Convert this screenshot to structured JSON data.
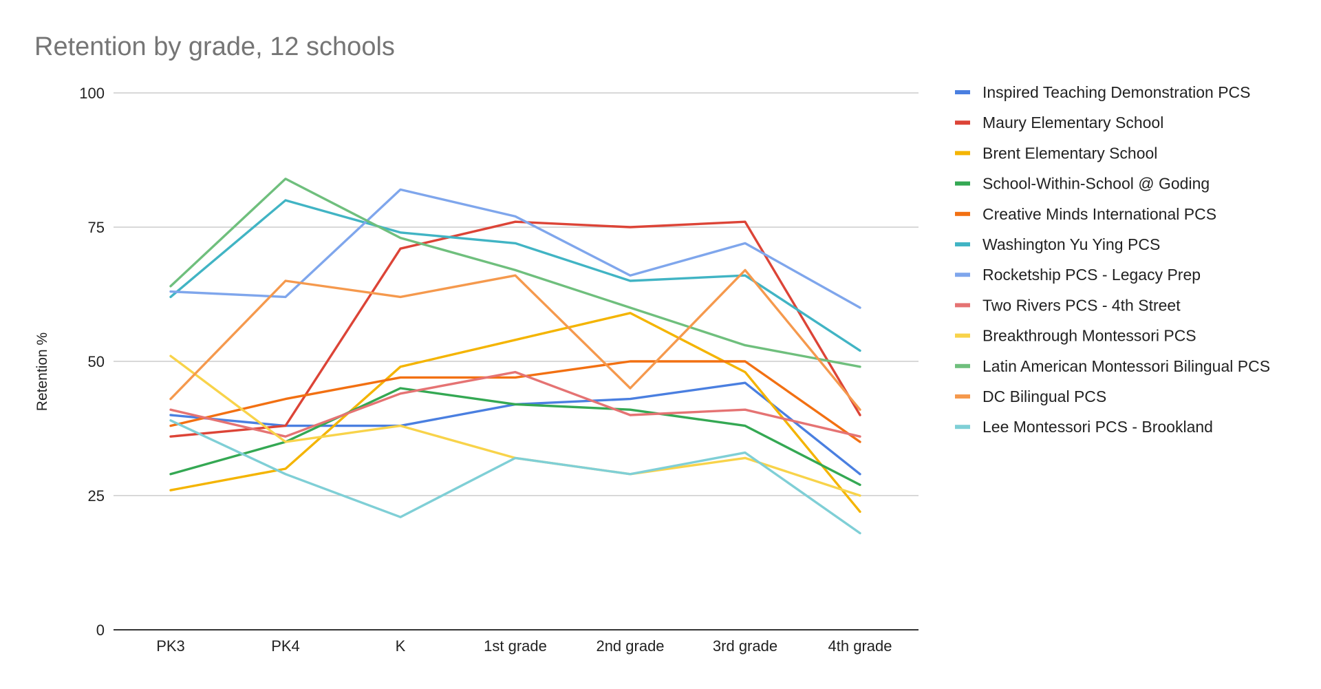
{
  "chart_data": {
    "type": "line",
    "title": "Retention by grade, 12 schools",
    "xlabel": "",
    "ylabel": "Retention %",
    "ylim": [
      0,
      100
    ],
    "yticks": [
      0,
      25,
      50,
      75,
      100
    ],
    "grid": true,
    "legend_position": "right",
    "categories": [
      "PK3",
      "PK4",
      "K",
      "1st grade",
      "2nd grade",
      "3rd grade",
      "4th grade"
    ],
    "series": [
      {
        "name": "Inspired Teaching Demonstration PCS",
        "color": "#4a7fe0",
        "values": [
          40,
          38,
          38,
          42,
          43,
          46,
          29
        ]
      },
      {
        "name": "Maury Elementary School",
        "color": "#dc4437",
        "values": [
          36,
          38,
          71,
          76,
          75,
          76,
          40
        ]
      },
      {
        "name": "Brent Elementary School",
        "color": "#f4b400",
        "values": [
          26,
          30,
          49,
          54,
          59,
          48,
          22
        ]
      },
      {
        "name": "School-Within-School @ Goding",
        "color": "#34a853",
        "values": [
          29,
          35,
          45,
          42,
          41,
          38,
          27
        ]
      },
      {
        "name": "Creative Minds International PCS",
        "color": "#f27012",
        "values": [
          38,
          43,
          47,
          47,
          50,
          50,
          35
        ]
      },
      {
        "name": "Washington Yu Ying PCS",
        "color": "#41b4c4",
        "values": [
          62,
          80,
          74,
          72,
          65,
          66,
          52
        ]
      },
      {
        "name": "Rocketship PCS - Legacy Prep",
        "color": "#7fa6ec",
        "values": [
          63,
          62,
          82,
          77,
          66,
          72,
          60
        ]
      },
      {
        "name": "Two Rivers PCS - 4th Street",
        "color": "#e57373",
        "values": [
          41,
          36,
          44,
          48,
          40,
          41,
          36
        ]
      },
      {
        "name": "Breakthrough Montessori PCS",
        "color": "#f8d34a",
        "values": [
          51,
          35,
          38,
          32,
          29,
          32,
          25
        ]
      },
      {
        "name": "Latin American Montessori Bilingual PCS",
        "color": "#6fbf7d",
        "values": [
          64,
          84,
          73,
          67,
          60,
          53,
          49
        ]
      },
      {
        "name": "DC Bilingual PCS",
        "color": "#f5994d",
        "values": [
          43,
          65,
          62,
          66,
          45,
          67,
          41
        ]
      },
      {
        "name": "Lee Montessori PCS - Brookland",
        "color": "#7fcfd6",
        "values": [
          39,
          29,
          21,
          32,
          29,
          33,
          18
        ]
      }
    ]
  }
}
